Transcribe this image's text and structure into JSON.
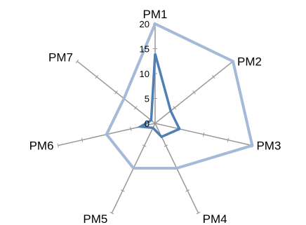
{
  "chart_data": {
    "type": "radar",
    "categories": [
      "PM1",
      "PM2",
      "PM3",
      "PM4",
      "PM5",
      "PM6",
      "PM7"
    ],
    "r_ticks": [
      0,
      5,
      10,
      15,
      20
    ],
    "r_range": [
      0,
      20
    ],
    "grid": false,
    "legend": "none",
    "series": [
      {
        "values": [
          20,
          20,
          20,
          10,
          10,
          10,
          8
        ],
        "color": "#a5b9d9"
      },
      {
        "values": [
          14,
          4,
          5,
          3,
          1,
          3,
          1
        ],
        "color": "#4f7fb3"
      }
    ],
    "axis_color": "#999999"
  }
}
